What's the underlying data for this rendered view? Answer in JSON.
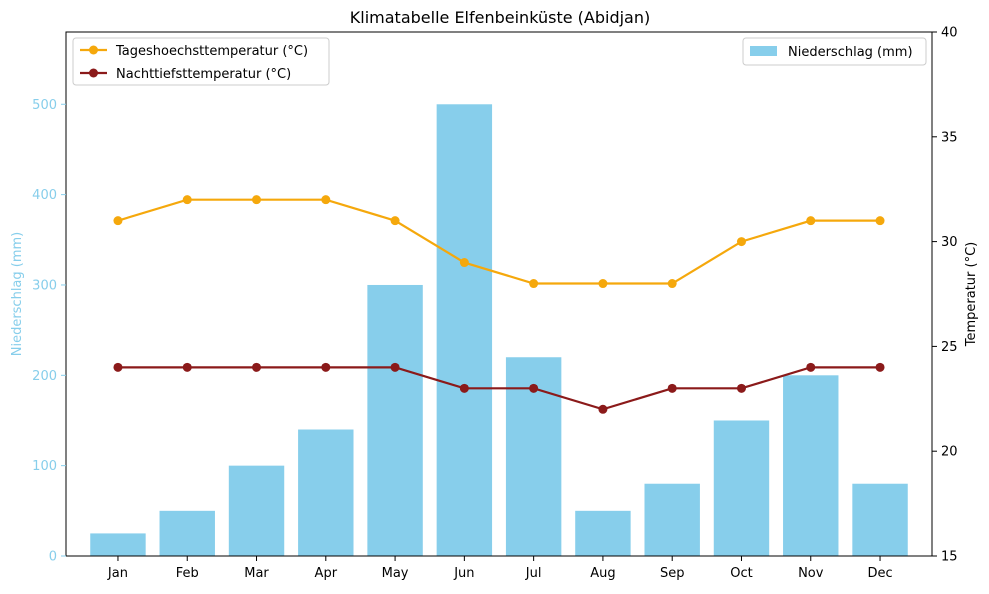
{
  "chart_data": {
    "type": "bar+line",
    "title": "Klimatabelle Elfenbeinküste (Abidjan)",
    "categories": [
      "Jan",
      "Feb",
      "Mar",
      "Apr",
      "May",
      "Jun",
      "Jul",
      "Aug",
      "Sep",
      "Oct",
      "Nov",
      "Dec"
    ],
    "precipitation": {
      "name": "Niederschlag (mm)",
      "values": [
        25,
        50,
        100,
        140,
        300,
        500,
        220,
        50,
        80,
        150,
        200,
        80
      ],
      "color": "#87CEEB"
    },
    "temperature_series": [
      {
        "name": "Tageshoechsttemperatur (°C)",
        "values": [
          31,
          32,
          32,
          32,
          31,
          29,
          28,
          28,
          28,
          30,
          31,
          31
        ],
        "color": "#F5A80C"
      },
      {
        "name": "Nachttiefsttemperatur (°C)",
        "values": [
          24,
          24,
          24,
          24,
          24,
          23,
          23,
          22,
          23,
          23,
          24,
          24
        ],
        "color": "#8B1A1A"
      }
    ],
    "y_left": {
      "label": "Niederschlag (mm)",
      "lim": [
        0,
        580
      ],
      "ticks": [
        0,
        100,
        200,
        300,
        400,
        500
      ],
      "color": "#87CEEB"
    },
    "y_right": {
      "label": "Temperatur (°C)",
      "lim": [
        15,
        40
      ],
      "ticks": [
        15,
        20,
        25,
        30,
        35,
        40
      ]
    },
    "legend_lines_position": "top-left",
    "legend_bars_position": "top-right",
    "grid": false
  }
}
